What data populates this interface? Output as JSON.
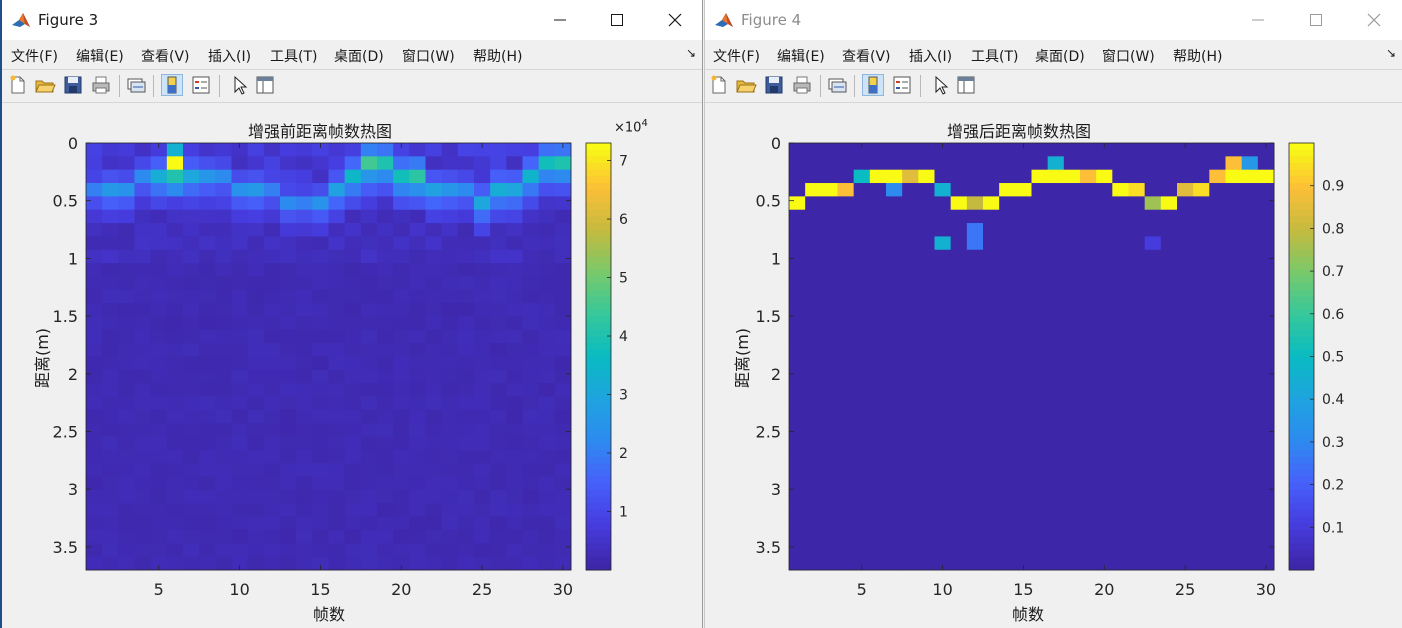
{
  "menu": [
    "文件(F)",
    "编辑(E)",
    "查看(V)",
    "插入(I)",
    "工具(T)",
    "桌面(D)",
    "窗口(W)",
    "帮助(H)"
  ],
  "menu_overflow_arrow": "↘",
  "toolbar_icons": [
    "new-figure-icon",
    "open-file-icon",
    "save-icon",
    "print-icon",
    "link-plot-icon",
    "colorbar-icon",
    "legend-icon",
    "pointer-icon",
    "property-inspector-icon"
  ],
  "colors": {
    "colormap": "parula",
    "window_bg": "#f0f0f0",
    "titlebar_bg": "#ffffff"
  },
  "figures": [
    {
      "window_title": "Figure 3",
      "active": true,
      "chart_data": {
        "type": "heatmap",
        "title": "增强前距离帧数热图",
        "xlabel": "帧数",
        "ylabel": "距离(m)",
        "colormap": "parula",
        "x_range": [
          1,
          30
        ],
        "y_range": [
          0,
          3.7
        ],
        "y_direction": "down",
        "x_ticks": [
          "5",
          "10",
          "15",
          "20",
          "25",
          "30"
        ],
        "y_ticks": [
          "0",
          "0.5",
          "1",
          "1.5",
          "2",
          "2.5",
          "3",
          "3.5"
        ],
        "colorbar_ticks": [
          "1",
          "2",
          "3",
          "4",
          "5",
          "6",
          "7"
        ],
        "colorbar_exponent": "×10^4",
        "clim": [
          0,
          73000
        ],
        "peak_row_per_frame": [
          3,
          3,
          3,
          2,
          2,
          1,
          2,
          2,
          2,
          3,
          3,
          3,
          4,
          4,
          4,
          3,
          2,
          1,
          1,
          2,
          2,
          3,
          3,
          3,
          4,
          3,
          3,
          2,
          1,
          1
        ],
        "peak_value_per_frame": [
          20000,
          26000,
          24000,
          22000,
          32000,
          73000,
          30000,
          25000,
          22000,
          24000,
          26000,
          20000,
          22000,
          20000,
          24000,
          28000,
          35000,
          45000,
          40000,
          38000,
          42000,
          28000,
          25000,
          22000,
          30000,
          32000,
          30000,
          34000,
          38000,
          40000
        ]
      }
    },
    {
      "window_title": "Figure 4",
      "active": false,
      "chart_data": {
        "type": "heatmap",
        "title": "增强后距离帧数热图",
        "xlabel": "帧数",
        "ylabel": "距离(m)",
        "colormap": "parula",
        "x_range": [
          1,
          30
        ],
        "y_range": [
          0,
          3.7
        ],
        "y_direction": "down",
        "x_ticks": [
          "5",
          "10",
          "15",
          "20",
          "25",
          "30"
        ],
        "y_ticks": [
          "0",
          "0.5",
          "1",
          "1.5",
          "2",
          "2.5",
          "3",
          "3.5"
        ],
        "colorbar_ticks": [
          "0.1",
          "0.2",
          "0.3",
          "0.4",
          "0.5",
          "0.6",
          "0.7",
          "0.8",
          "0.9"
        ],
        "colorbar_exponent": "",
        "clim": [
          0,
          1
        ],
        "peak_row_per_frame": [
          4,
          3,
          3,
          3,
          2,
          2,
          2,
          2,
          2,
          3,
          4,
          4,
          4,
          3,
          3,
          2,
          2,
          2,
          2,
          2,
          3,
          3,
          4,
          4,
          3,
          3,
          2,
          2,
          2,
          2
        ],
        "peak_value_per_frame": [
          1,
          1,
          1,
          0.9,
          0.5,
          1,
          1,
          0.85,
          1,
          0.45,
          1,
          0.8,
          1,
          1,
          1,
          1,
          1,
          1,
          0.9,
          1,
          1,
          0.95,
          0.75,
          1,
          0.85,
          0.95,
          0.9,
          1,
          1,
          1
        ],
        "extra_cells": [
          {
            "frame": 7,
            "row": 3,
            "value": 0.3
          },
          {
            "frame": 17,
            "row": 1,
            "value": 0.45
          },
          {
            "frame": 10,
            "row": 7,
            "value": 0.45
          },
          {
            "frame": 12,
            "row": 6,
            "value": 0.25
          },
          {
            "frame": 12,
            "row": 7,
            "value": 0.25
          },
          {
            "frame": 29,
            "row": 1,
            "value": 0.35
          },
          {
            "frame": 28,
            "row": 1,
            "value": 0.9
          },
          {
            "frame": 23,
            "row": 7,
            "value": 0.1
          }
        ]
      }
    }
  ]
}
